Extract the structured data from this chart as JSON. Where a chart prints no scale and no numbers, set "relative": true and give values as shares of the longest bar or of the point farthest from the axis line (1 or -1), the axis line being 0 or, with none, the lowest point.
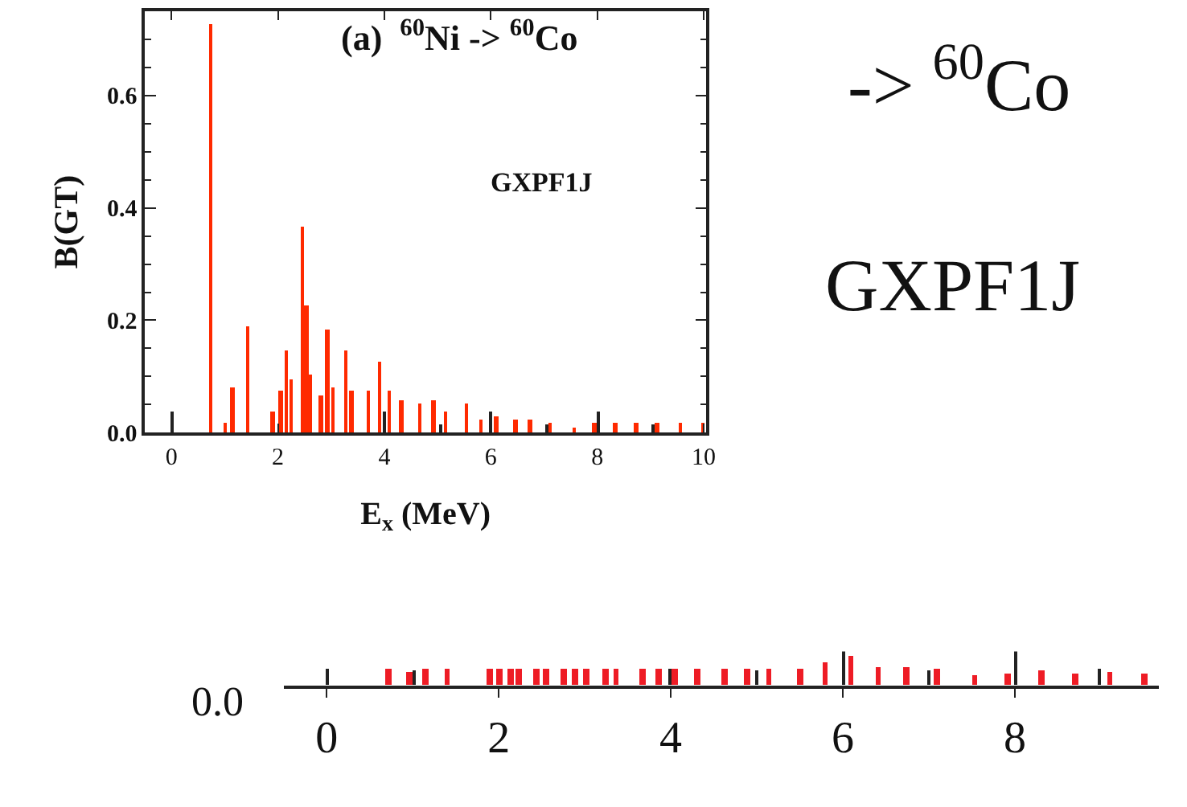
{
  "chart_data": [
    {
      "type": "bar",
      "ylabel": "B(GT)",
      "xlabel": "E$_{x}$ (MeV)",
      "annotations": [
        "(a)  $^{60}$Ni -> $^{60}$Co",
        "GXPF1J"
      ],
      "xlim": [
        -0.5,
        10.05
      ],
      "xticks": [
        0,
        2,
        4,
        6,
        8,
        10
      ],
      "ylim": [
        0,
        0.75
      ],
      "yticks": [
        {
          "value": 0,
          "label": "0.0"
        },
        0.2,
        0.4,
        0.6
      ],
      "series": [
        {
          "color": "#ff2a00",
          "x": [
            0.74,
            1.01,
            1.15,
            1.43,
            1.91,
            2.05,
            2.16,
            2.25,
            2.46,
            2.54,
            2.61,
            2.8,
            2.93,
            3.04,
            3.28,
            3.39,
            3.7,
            3.91,
            4.09,
            4.32,
            4.67,
            4.92,
            5.15,
            5.54,
            5.81,
            6.11,
            6.46,
            6.74,
            7.11,
            7.57,
            7.95,
            8.33,
            8.74,
            9.13,
            9.56,
            9.98
          ],
          "values": [
            0.727,
            0.017,
            0.082,
            0.19,
            0.038,
            0.075,
            0.147,
            0.096,
            0.368,
            0.228,
            0.103,
            0.068,
            0.184,
            0.082,
            0.147,
            0.075,
            0.075,
            0.126,
            0.075,
            0.059,
            0.053,
            0.059,
            0.038,
            0.053,
            0.023,
            0.03,
            0.023,
            0.023,
            0.017,
            0.008,
            0.017,
            0.017,
            0.017,
            0.017,
            0.017,
            0.017
          ]
        },
        {
          "color": "#222222",
          "x": [
            0.0,
            4.0,
            5.06,
            6.01,
            7.06,
            8.02,
            9.05
          ],
          "values": [
            0.038,
            0.038,
            0.016,
            0.038,
            0.016,
            0.038,
            0.016
          ]
        }
      ]
    },
    {
      "type": "bar",
      "relative": true,
      "annotations": [
        "0.0",
        "-> $^{60}$Co",
        "GXPF1J"
      ],
      "xlim": [
        -0.5,
        9.67
      ],
      "xticks": [
        0,
        2,
        4,
        6,
        8
      ],
      "series": [
        {
          "color": "#ee1c25",
          "x": [
            0.72,
            0.96,
            1.14,
            1.4,
            1.89,
            2.01,
            2.13,
            2.23,
            2.43,
            2.55,
            2.76,
            2.89,
            3.01,
            3.24,
            3.36,
            3.67,
            3.86,
            4.05,
            4.3,
            4.63,
            4.88,
            5.14,
            5.5,
            5.79,
            6.09,
            6.41,
            6.73,
            7.09,
            7.53,
            7.92,
            8.31,
            8.7,
            9.1,
            9.51
          ],
          "values": [
            0.48,
            0.375,
            0.48,
            0.48,
            0.48,
            0.48,
            0.48,
            0.48,
            0.48,
            0.48,
            0.48,
            0.48,
            0.48,
            0.48,
            0.48,
            0.48,
            0.48,
            0.48,
            0.48,
            0.48,
            0.48,
            0.48,
            0.48,
            0.69,
            0.875,
            0.56,
            0.56,
            0.48,
            0.29,
            0.33,
            0.42,
            0.33,
            0.375,
            0.33
          ]
        },
        {
          "color": "#222222",
          "x": [
            0.0,
            1.01,
            3.99,
            4.99,
            6.0,
            7.0,
            8.0,
            8.99
          ],
          "values": [
            0.48,
            0.42,
            0.48,
            0.42,
            1.0,
            0.42,
            1.0,
            0.48
          ]
        }
      ]
    }
  ]
}
